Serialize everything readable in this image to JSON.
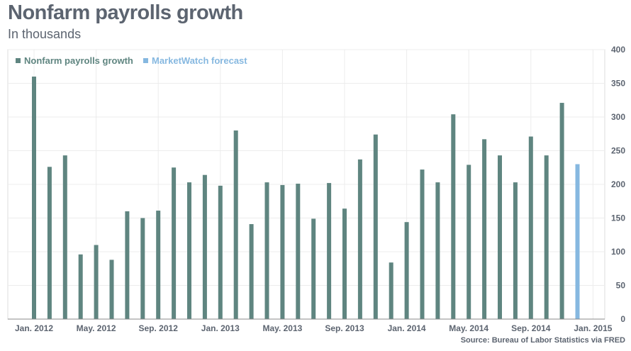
{
  "chart_data": {
    "type": "bar",
    "title": "Nonfarm payrolls growth",
    "subtitle": "In thousands",
    "source": "Source: Bureau of Labor Statistics via FRED",
    "ylim": [
      0,
      400
    ],
    "yticks": [
      0,
      50,
      100,
      150,
      200,
      250,
      300,
      350,
      400
    ],
    "xtick_labels": [
      {
        "label": "Jan. 2012",
        "index": 0
      },
      {
        "label": "May. 2012",
        "index": 4
      },
      {
        "label": "Sep. 2012",
        "index": 8
      },
      {
        "label": "Jan. 2013",
        "index": 12
      },
      {
        "label": "May. 2013",
        "index": 16
      },
      {
        "label": "Sep. 2013",
        "index": 20
      },
      {
        "label": "Jan. 2014",
        "index": 24
      },
      {
        "label": "May. 2014",
        "index": 28
      },
      {
        "label": "Sep. 2014",
        "index": 32
      },
      {
        "label": "Jan. 2015",
        "index": 36
      }
    ],
    "legend": {
      "placement": "top-left"
    },
    "series": [
      {
        "name": "Nonfarm payrolls growth",
        "color": "#5f8580",
        "start_index": 0,
        "values": [
          360,
          226,
          243,
          96,
          110,
          88,
          160,
          150,
          161,
          225,
          203,
          214,
          198,
          280,
          141,
          203,
          199,
          201,
          149,
          202,
          164,
          237,
          274,
          84,
          144,
          222,
          203,
          304,
          229,
          267,
          243,
          203,
          271,
          243,
          321
        ]
      },
      {
        "name": "MarketWatch forecast",
        "color": "#86b8e0",
        "start_index": 35,
        "values": [
          230
        ]
      }
    ]
  }
}
